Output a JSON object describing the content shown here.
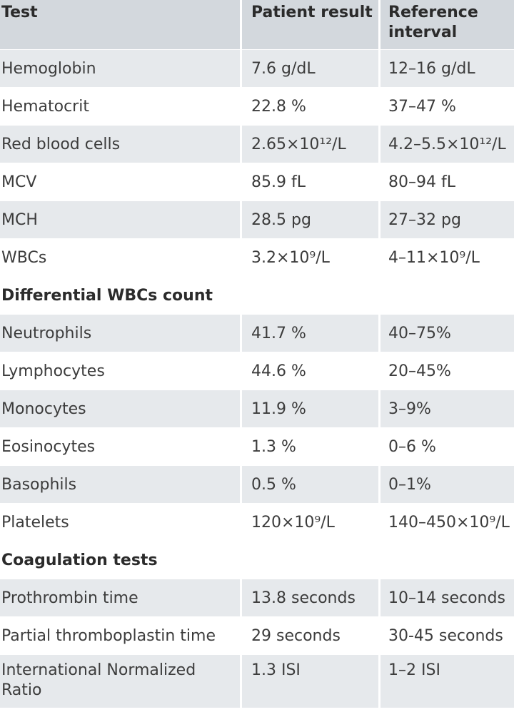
{
  "header": {
    "test": "Test",
    "patient_result": "Patient result",
    "reference_interval": "Reference interval"
  },
  "rows": [
    {
      "type": "data",
      "test": "Hemoglobin",
      "result": "7.6 g/dL",
      "reference": "12–16 g/dL"
    },
    {
      "type": "data",
      "test": "Hematocrit",
      "result": "22.8 %",
      "reference": "37–47 %"
    },
    {
      "type": "data",
      "test": "Red blood cells",
      "result": "2.65×10¹²/L",
      "reference": "4.2–5.5×10¹²/L"
    },
    {
      "type": "data",
      "test": "MCV",
      "result": "85.9 fL",
      "reference": "80–94 fL"
    },
    {
      "type": "data",
      "test": "MCH",
      "result": "28.5 pg",
      "reference": "27–32 pg"
    },
    {
      "type": "data",
      "test": "WBCs",
      "result": "3.2×10⁹/L",
      "reference": "4–11×10⁹/L"
    },
    {
      "type": "section",
      "test": "Differential WBCs count",
      "result": "",
      "reference": ""
    },
    {
      "type": "data",
      "test": "Neutrophils",
      "result": "41.7 %",
      "reference": "40–75%"
    },
    {
      "type": "data",
      "test": "Lymphocytes",
      "result": "44.6 %",
      "reference": "20–45%"
    },
    {
      "type": "data",
      "test": "Monocytes",
      "result": "11.9 %",
      "reference": "3–9%"
    },
    {
      "type": "data",
      "test": "Eosinocytes",
      "result": "1.3 %",
      "reference": "0–6 %"
    },
    {
      "type": "data",
      "test": "Basophils",
      "result": "0.5 %",
      "reference": "0–1%"
    },
    {
      "type": "data",
      "test": "Platelets",
      "result": "120×10⁹/L",
      "reference": "140–450×10⁹/L"
    },
    {
      "type": "section",
      "test": "Coagulation tests",
      "result": "",
      "reference": ""
    },
    {
      "type": "data",
      "test": "Prothrombin time",
      "result": "13.8 seconds",
      "reference": "10–14 seconds"
    },
    {
      "type": "data",
      "test": "Partial thromboplastin time",
      "result": "29 seconds",
      "reference": "30-45 seconds"
    },
    {
      "type": "data",
      "test": "International Normalized Ratio",
      "result": "1.3 ISI",
      "reference": "1–2 ISI"
    }
  ]
}
